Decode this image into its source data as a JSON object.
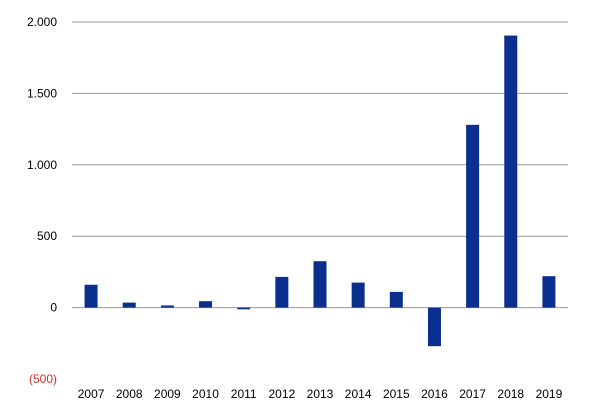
{
  "chart_data": {
    "type": "bar",
    "categories": [
      "2007",
      "2008",
      "2009",
      "2010",
      "2011",
      "2012",
      "2013",
      "2014",
      "2015",
      "2016",
      "2017",
      "2018",
      "2019"
    ],
    "values": [
      160,
      35,
      15,
      45,
      -12,
      215,
      325,
      175,
      110,
      -270,
      1280,
      1905,
      220
    ],
    "ylim": [
      -500,
      2000
    ],
    "yticks": [
      -500,
      0,
      500,
      1000,
      1500,
      2000
    ],
    "ytick_labels": [
      "(500)",
      "0",
      "500",
      "1.000",
      "1.500",
      "2.000"
    ],
    "grid": true,
    "legend": "none",
    "title": "",
    "xlabel": "",
    "ylabel": ""
  },
  "colors": {
    "bar": "#0b2f8f",
    "grid": "#9a9a9a",
    "negative_tick": "#d0302a",
    "axis_text": "#000000"
  }
}
